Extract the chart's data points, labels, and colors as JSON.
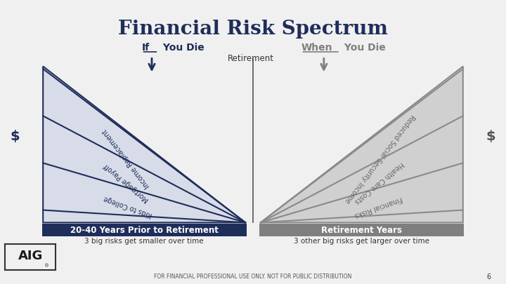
{
  "title": "Financial Risk Spectrum",
  "title_fontsize": 20,
  "title_color": "#1f2d5a",
  "bg_color": "#f0f0f0",
  "top_bar_color": "#1f2d5a",
  "left_label": "If You Die",
  "right_label": "When You Die",
  "center_label": "Retirement",
  "left_box_label": "20-40 Years Prior to Retirement",
  "right_box_label": "Retirement Years",
  "left_box_color": "#1f2d5a",
  "right_box_color": "#7f7f7f",
  "left_caption": "3 big risks get smaller over time",
  "right_caption": "3 other big risks get larger over time",
  "dollar_color": "#1f2d5a",
  "left_lines": [
    "Income Replacement",
    "Mortgage Payoff",
    "Kids to College"
  ],
  "right_lines": [
    "Social Security Income",
    "Health Care Costs",
    "Financial Risks"
  ],
  "right_line_prefix": [
    "Reduced ",
    "",
    ""
  ],
  "line_color_left": "#1f2d5a",
  "line_color_right": "#8a8a8a",
  "footer": "FOR FINANCIAL PROFESSIONAL USE ONLY. NOT FOR PUBLIC DISTRIBUTION",
  "page_num": "6"
}
